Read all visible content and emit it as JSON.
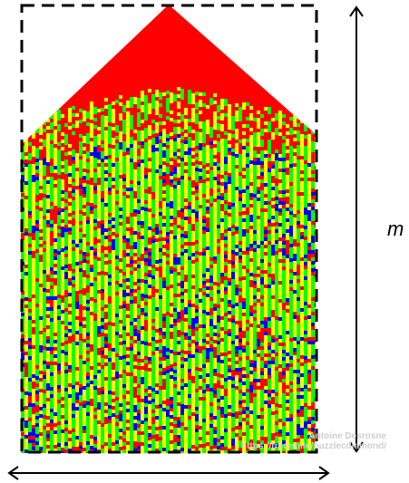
{
  "labels": {
    "height_var": "m",
    "top_right_mark": ""
  },
  "watermark": {
    "line1": "Antoine Desrosne",
    "line2": "https://tracezillo/puzzlecdiamond/"
  },
  "colors": {
    "red": "#ff0000",
    "green": "#00ff00",
    "yellow": "#ffff00",
    "blue": "#0000ff",
    "frame": "#000000"
  }
}
